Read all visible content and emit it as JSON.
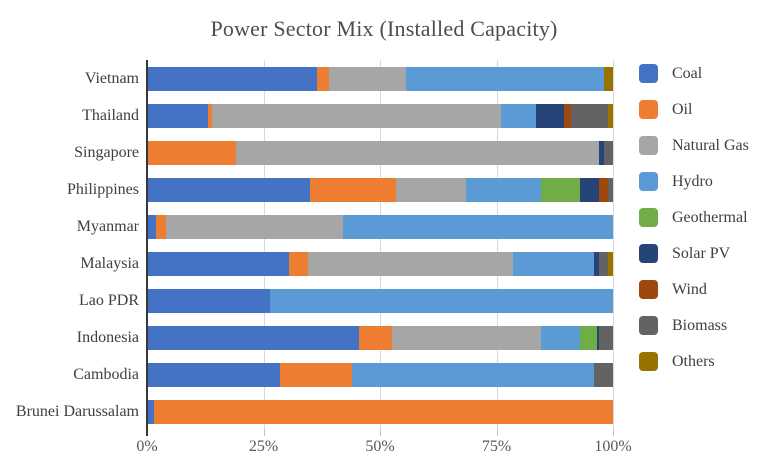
{
  "chart_data": {
    "type": "bar",
    "orientation": "horizontal",
    "stacked": true,
    "title": "Power Sector Mix (Installed Capacity)",
    "xlabel": "",
    "ylabel": "",
    "xlim": [
      0,
      100
    ],
    "grid": true,
    "legend_position": "right",
    "x_ticks": [
      "0%",
      "25%",
      "50%",
      "75%",
      "100%"
    ],
    "categories": [
      "Vietnam",
      "Thailand",
      "Singapore",
      "Philippines",
      "Myanmar",
      "Malaysia",
      "Lao PDR",
      "Indonesia",
      "Cambodia",
      "Brunei Darussalam"
    ],
    "series": [
      {
        "name": "Coal",
        "color": "#4472C4",
        "values": [
          36.5,
          13,
          0,
          35,
          2,
          30.5,
          26.5,
          45.5,
          28.5,
          1.5
        ]
      },
      {
        "name": "Oil",
        "color": "#ED7D31",
        "values": [
          2.5,
          1,
          19,
          18.5,
          2,
          4,
          0,
          7,
          15.5,
          98.5
        ]
      },
      {
        "name": "Natural Gas",
        "color": "#A6A6A6",
        "values": [
          16.5,
          62,
          78,
          15,
          38,
          44,
          0,
          32,
          0,
          0
        ]
      },
      {
        "name": "Hydro",
        "color": "#5B9BD5",
        "values": [
          42.5,
          7.5,
          0,
          16,
          58,
          17.5,
          73.5,
          8.5,
          52,
          0
        ]
      },
      {
        "name": "Geothermal",
        "color": "#70AD47",
        "values": [
          0,
          0,
          0,
          8.5,
          0,
          0,
          0,
          3.5,
          0,
          0
        ]
      },
      {
        "name": "Solar PV",
        "color": "#264478",
        "values": [
          0,
          6,
          1,
          4,
          0,
          1,
          0,
          0.5,
          0,
          0
        ]
      },
      {
        "name": "Wind",
        "color": "#9E480E",
        "values": [
          0,
          1.5,
          0,
          2,
          0,
          0,
          0,
          0,
          0,
          0
        ]
      },
      {
        "name": "Biomass",
        "color": "#636363",
        "values": [
          0,
          8,
          2,
          1,
          0,
          2,
          0,
          3,
          4,
          0
        ]
      },
      {
        "name": "Others",
        "color": "#997300",
        "values": [
          2,
          1,
          0,
          0,
          0,
          1,
          0,
          0,
          0,
          0
        ]
      }
    ]
  }
}
